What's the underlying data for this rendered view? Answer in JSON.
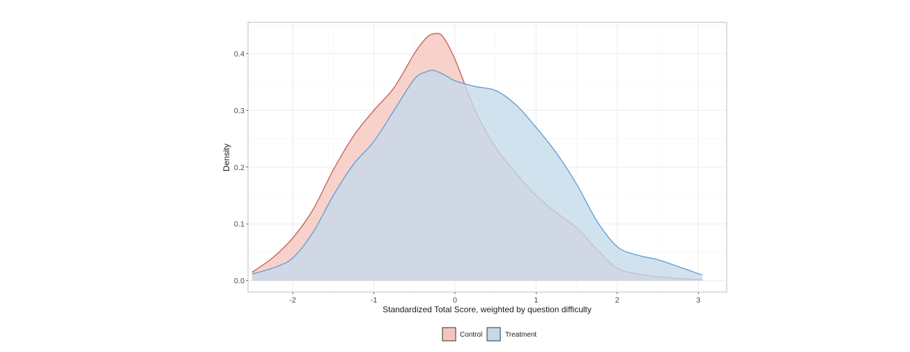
{
  "chart_data": {
    "type": "area",
    "subtype": "density",
    "title": "",
    "xlabel": "Standardized Total Score, weighted by question difficulty",
    "ylabel": "Density",
    "xlim": [
      -2.55,
      3.35
    ],
    "ylim": [
      -0.02,
      0.455
    ],
    "x_ticks": [
      -2,
      -1,
      0,
      1,
      2,
      3
    ],
    "y_ticks": [
      0.0,
      0.1,
      0.2,
      0.3,
      0.4
    ],
    "x_tick_labels": [
      "-2",
      "-1",
      "0",
      "1",
      "2",
      "3"
    ],
    "y_tick_labels": [
      "0.0",
      "0.1",
      "0.2",
      "0.3",
      "0.4"
    ],
    "grid": true,
    "legend_position": "bottom",
    "series": [
      {
        "name": "Control",
        "fill": "#f4c5bd",
        "stroke": "#c65a4e",
        "x": [
          -2.5,
          -2.25,
          -2.0,
          -1.75,
          -1.5,
          -1.25,
          -1.0,
          -0.75,
          -0.5,
          -0.35,
          -0.25,
          -0.15,
          0.0,
          0.25,
          0.5,
          0.75,
          1.0,
          1.25,
          1.5,
          1.75,
          2.0,
          2.25,
          2.5,
          2.75,
          3.05
        ],
        "values": [
          0.015,
          0.04,
          0.075,
          0.125,
          0.195,
          0.255,
          0.3,
          0.34,
          0.4,
          0.428,
          0.435,
          0.43,
          0.39,
          0.3,
          0.235,
          0.19,
          0.15,
          0.12,
          0.093,
          0.055,
          0.022,
          0.012,
          0.007,
          0.004,
          0.002
        ]
      },
      {
        "name": "Treatment",
        "fill": "#c4daea",
        "stroke": "#5b9bd5",
        "x": [
          -2.5,
          -2.25,
          -2.0,
          -1.75,
          -1.5,
          -1.25,
          -1.0,
          -0.75,
          -0.5,
          -0.35,
          -0.25,
          -0.1,
          0.0,
          0.25,
          0.5,
          0.75,
          1.0,
          1.25,
          1.5,
          1.75,
          2.0,
          2.25,
          2.5,
          2.75,
          3.05
        ],
        "values": [
          0.012,
          0.022,
          0.04,
          0.085,
          0.15,
          0.205,
          0.245,
          0.3,
          0.355,
          0.368,
          0.37,
          0.36,
          0.352,
          0.342,
          0.335,
          0.31,
          0.27,
          0.225,
          0.17,
          0.105,
          0.06,
          0.045,
          0.037,
          0.025,
          0.01
        ]
      }
    ]
  }
}
